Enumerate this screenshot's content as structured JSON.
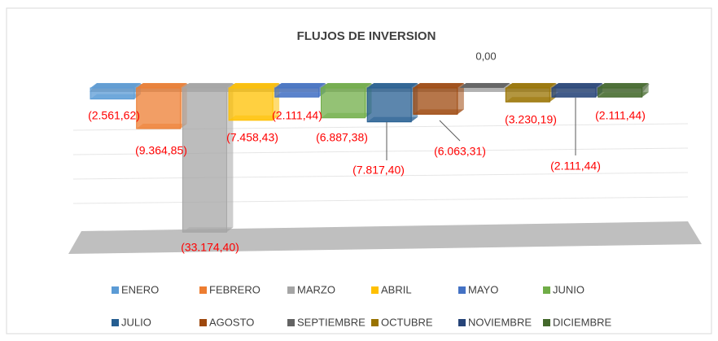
{
  "chart_data": {
    "type": "bar3d",
    "title": "FLUJOS DE INVERSION",
    "categories": [
      "ENERO",
      "FEBRERO",
      "MARZO",
      "ABRIL",
      "MAYO",
      "JUNIO",
      "JULIO",
      "AGOSTO",
      "SEPTIEMBRE",
      "OCTUBRE",
      "NOVIEMBRE",
      "DICIEMBRE"
    ],
    "values": [
      -2561.62,
      -9364.85,
      -33174.4,
      -7458.43,
      -2111.44,
      -6887.38,
      -7817.4,
      -6063.31,
      0.0,
      -3230.19,
      -2111.44,
      -2111.44
    ],
    "value_labels": [
      "(2.561,62)",
      "(9.364,85)",
      "(33.174,40)",
      "(7.458,43)",
      "(2.111,44)",
      "(6.887,38)",
      "(7.817,40)",
      "(6.063,31)",
      "0,00",
      "(3.230,19)",
      "(2.111,44)",
      "(2.111,44)"
    ],
    "colors": [
      "#5b9bd5",
      "#ed7d31",
      "#a5a5a5",
      "#ffc000",
      "#4472c4",
      "#70ad47",
      "#255e91",
      "#9e480e",
      "#636363",
      "#997300",
      "#264478",
      "#43682b"
    ],
    "ylim": [
      -35000,
      0
    ],
    "legend": "bottom"
  }
}
